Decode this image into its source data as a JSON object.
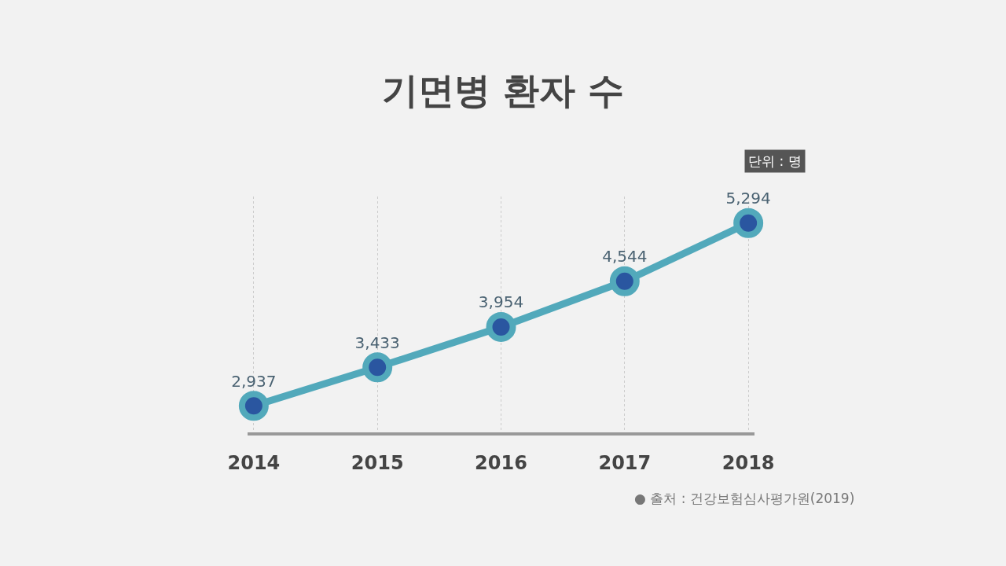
{
  "chart_data": {
    "type": "line",
    "title": "기면병 환자 수",
    "categories": [
      "2014",
      "2015",
      "2016",
      "2017",
      "2018"
    ],
    "series": [
      {
        "color": "#52a9bb",
        "values": [
          2937,
          3433,
          3954,
          4544,
          5294
        ],
        "value_labels": [
          "2,937",
          "3,433",
          "3,954",
          "4,544",
          "5,294"
        ]
      }
    ],
    "marker": "circle",
    "grid": "x",
    "legend": false,
    "tick_labels": "x",
    "annotations": [
      "단위 : 명",
      "● 출처 : 건강보험심사평가원(2019)"
    ]
  }
}
